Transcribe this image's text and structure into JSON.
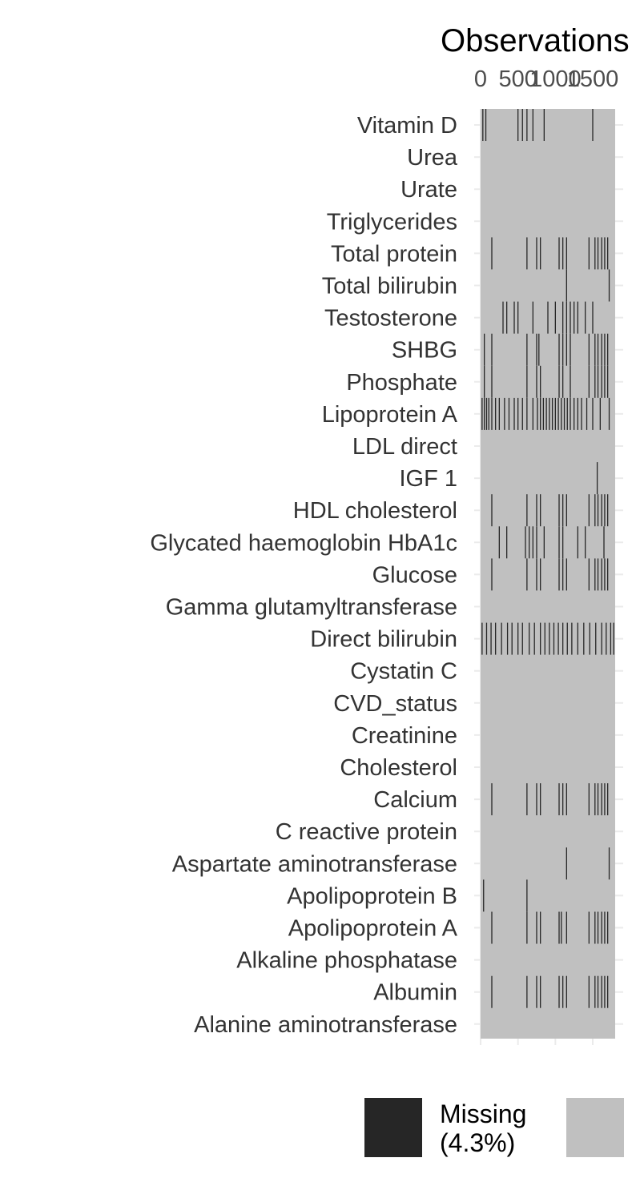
{
  "chart_data": {
    "type": "heatmap",
    "title": "Observations",
    "x_ticks": [
      0,
      500,
      1000,
      1500
    ],
    "xlim": [
      0,
      1800
    ],
    "variables": [
      "Vitamin D",
      "Urea",
      "Urate",
      "Triglycerides",
      "Total protein",
      "Total bilirubin",
      "Testosterone",
      "SHBG",
      "Phosphate",
      "Lipoprotein A",
      "LDL direct",
      "IGF 1",
      "HDL cholesterol",
      "Glycated haemoglobin HbA1c ",
      "Glucose",
      "Gamma glutamyltransferase",
      "Direct bilirubin",
      "Cystatin C",
      "CVD_status",
      "Creatinine",
      "Cholesterol",
      "Calcium",
      "C reactive protein",
      "Aspartate aminotransferase",
      "Apolipoprotein B",
      "Apolipoprotein A",
      "Alkaline phosphatase",
      "Albumin",
      "Alanine aminotransferase"
    ],
    "missing_observations": {
      "Vitamin D": [
        30,
        70,
        500,
        560,
        620,
        700,
        850,
        1500
      ],
      "Urea": [],
      "Urate": [],
      "Triglycerides": [],
      "Total protein": [
        150,
        620,
        750,
        800,
        1050,
        1100,
        1150,
        1450,
        1530,
        1570,
        1620,
        1660,
        1700
      ],
      "Total bilirubin": [
        1150,
        1720
      ],
      "Testosterone": [
        300,
        350,
        450,
        500,
        700,
        900,
        1000,
        1100,
        1150,
        1200,
        1250,
        1300,
        1400,
        1500
      ],
      "SHBG": [
        50,
        150,
        620,
        750,
        780,
        1050,
        1100,
        1150,
        1200,
        1450,
        1530,
        1570,
        1620,
        1660,
        1700
      ],
      "Phosphate": [
        50,
        150,
        620,
        750,
        800,
        1050,
        1100,
        1200,
        1450,
        1530,
        1570,
        1620,
        1660,
        1700
      ],
      "Lipoprotein A": [
        20,
        50,
        80,
        110,
        150,
        200,
        250,
        320,
        380,
        450,
        500,
        560,
        620,
        700,
        760,
        800,
        840,
        880,
        920,
        960,
        1000,
        1040,
        1080,
        1120,
        1160,
        1200,
        1250,
        1300,
        1350,
        1420,
        1500,
        1600,
        1720
      ],
      "LDL direct": [],
      "IGF 1": [
        1560
      ],
      "HDL cholesterol": [
        150,
        620,
        750,
        800,
        1050,
        1100,
        1150,
        1450,
        1530,
        1570,
        1620,
        1660,
        1700
      ],
      "Glycated haemoglobin HbA1c ": [
        250,
        350,
        600,
        650,
        700,
        750,
        850,
        1050,
        1100,
        1300,
        1400,
        1650
      ],
      "Glucose": [
        150,
        620,
        750,
        800,
        1050,
        1100,
        1150,
        1450,
        1530,
        1570,
        1620,
        1660,
        1700
      ],
      "Gamma glutamyltransferase": [],
      "Direct bilirubin": [
        20,
        80,
        140,
        200,
        280,
        360,
        420,
        500,
        560,
        650,
        720,
        800,
        860,
        920,
        980,
        1040,
        1100,
        1160,
        1220,
        1300,
        1380,
        1460,
        1540,
        1620,
        1680,
        1740,
        1780
      ],
      "Cystatin C": [],
      "CVD_status": [],
      "Creatinine": [],
      "Cholesterol": [],
      "Calcium": [
        150,
        620,
        750,
        800,
        1050,
        1100,
        1150,
        1450,
        1530,
        1570,
        1620,
        1660,
        1700
      ],
      "C reactive protein": [],
      "Aspartate aminotransferase": [
        1150,
        1720
      ],
      "Apolipoprotein B": [
        40,
        620
      ],
      "Apolipoprotein A": [
        150,
        620,
        750,
        800,
        1050,
        1080,
        1150,
        1450,
        1530,
        1570,
        1620,
        1660,
        1700
      ],
      "Alkaline phosphatase": [],
      "Albumin": [
        150,
        620,
        750,
        800,
        1050,
        1100,
        1150,
        1450,
        1530,
        1570,
        1620,
        1660,
        1700
      ],
      "Alanine aminotransferase": []
    },
    "legend": [
      {
        "label": "Missing\n(4.3%)",
        "color": "#262626"
      },
      {
        "label": "",
        "color": "#c0c0c0"
      }
    ],
    "colors": {
      "missing": "#262626",
      "present": "#c0c0c0",
      "grid": "#ebebeb"
    },
    "legend_position": "bottom"
  }
}
